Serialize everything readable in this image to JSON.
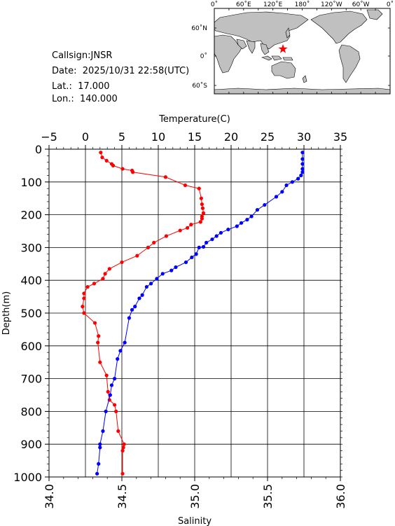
{
  "info": {
    "callsign": "Callsign:JNSR",
    "date": "Date:  2025/10/31 22:58(UTC)",
    "lat": "Lat.:  17.000",
    "lon": "Lon.:  140.000"
  },
  "map": {
    "lon_labels": [
      "0˚",
      "60˚E",
      "120˚E",
      "180˚",
      "120˚W",
      "60˚W",
      "0˚"
    ],
    "lat_labels": [
      "60˚N",
      "0˚",
      "60˚S"
    ],
    "ocean_color": "#ffffff",
    "land_color": "#c0c0c0",
    "station_marker": "red-star",
    "station_lon": 140.0,
    "station_lat": 17.0
  },
  "chart_data": {
    "type": "line",
    "ylabel": "Depth(m)",
    "ylim": [
      1000,
      0
    ],
    "y_ticks": [
      "0",
      "100",
      "200",
      "300",
      "400",
      "500",
      "600",
      "700",
      "800",
      "900",
      "1000"
    ],
    "top_axis": {
      "label": "Temperature(C)",
      "lim": [
        -5,
        35
      ],
      "ticks": [
        "−5",
        "0",
        "5",
        "10",
        "15",
        "20",
        "25",
        "30",
        "35"
      ]
    },
    "bottom_axis": {
      "label": "Salinity",
      "lim": [
        34.0,
        36.0
      ],
      "ticks": [
        "34.0",
        "34.5",
        "35.0",
        "35.5",
        "36.0"
      ]
    },
    "grid": true,
    "series": [
      {
        "axis": "top",
        "color": "#ff0000",
        "points": [
          [
            2.1,
            10
          ],
          [
            2.3,
            25
          ],
          [
            2.9,
            35
          ],
          [
            3.6,
            45
          ],
          [
            3.8,
            50
          ],
          [
            5.1,
            60
          ],
          [
            6.4,
            65
          ],
          [
            6.5,
            70
          ],
          [
            11.0,
            85
          ],
          [
            13.7,
            110
          ],
          [
            15.6,
            120
          ],
          [
            15.9,
            150
          ],
          [
            16.0,
            168
          ],
          [
            16.1,
            180
          ],
          [
            16.2,
            195
          ],
          [
            16.0,
            205
          ],
          [
            16.0,
            212
          ],
          [
            15.8,
            222
          ],
          [
            14.5,
            230
          ],
          [
            14.0,
            240
          ],
          [
            13.0,
            248
          ],
          [
            11.1,
            265
          ],
          [
            9.4,
            285
          ],
          [
            8.6,
            300
          ],
          [
            7.1,
            325
          ],
          [
            5.0,
            345
          ],
          [
            3.3,
            365
          ],
          [
            2.7,
            380
          ],
          [
            2.4,
            395
          ],
          [
            1.2,
            410
          ],
          [
            0.3,
            420
          ],
          [
            -0.2,
            440
          ],
          [
            -0.2,
            455
          ],
          [
            -0.4,
            480
          ],
          [
            -0.2,
            500
          ],
          [
            1.3,
            530
          ],
          [
            1.8,
            570
          ],
          [
            1.7,
            590
          ],
          [
            2.0,
            650
          ],
          [
            2.9,
            690
          ],
          [
            3.1,
            740
          ],
          [
            3.3,
            765
          ],
          [
            4.0,
            780
          ],
          [
            4.2,
            800
          ],
          [
            4.5,
            860
          ],
          [
            5.3,
            900
          ],
          [
            5.2,
            910
          ],
          [
            5.1,
            920
          ],
          [
            5.1,
            990
          ]
        ]
      },
      {
        "axis": "bottom",
        "color": "#0000ff",
        "points": [
          [
            35.74,
            10
          ],
          [
            35.74,
            30
          ],
          [
            35.74,
            45
          ],
          [
            35.74,
            60
          ],
          [
            35.74,
            70
          ],
          [
            35.73,
            80
          ],
          [
            35.71,
            90
          ],
          [
            35.67,
            100
          ],
          [
            35.63,
            110
          ],
          [
            35.6,
            130
          ],
          [
            35.56,
            145
          ],
          [
            35.48,
            170
          ],
          [
            35.43,
            185
          ],
          [
            35.39,
            205
          ],
          [
            35.36,
            215
          ],
          [
            35.32,
            225
          ],
          [
            35.29,
            235
          ],
          [
            35.23,
            245
          ],
          [
            35.18,
            255
          ],
          [
            35.15,
            265
          ],
          [
            35.12,
            275
          ],
          [
            35.08,
            285
          ],
          [
            35.06,
            298
          ],
          [
            35.03,
            300
          ],
          [
            35.01,
            320
          ],
          [
            34.98,
            330
          ],
          [
            34.94,
            345
          ],
          [
            34.87,
            360
          ],
          [
            34.84,
            370
          ],
          [
            34.78,
            380
          ],
          [
            34.74,
            395
          ],
          [
            34.7,
            410
          ],
          [
            34.67,
            420
          ],
          [
            34.64,
            445
          ],
          [
            34.62,
            455
          ],
          [
            34.59,
            480
          ],
          [
            34.57,
            490
          ],
          [
            34.55,
            515
          ],
          [
            34.52,
            590
          ],
          [
            34.49,
            615
          ],
          [
            34.47,
            640
          ],
          [
            34.45,
            700
          ],
          [
            34.43,
            720
          ],
          [
            34.42,
            750
          ],
          [
            34.39,
            800
          ],
          [
            34.37,
            860
          ],
          [
            34.35,
            900
          ],
          [
            34.35,
            910
          ],
          [
            34.34,
            960
          ],
          [
            34.33,
            990
          ]
        ]
      }
    ]
  }
}
